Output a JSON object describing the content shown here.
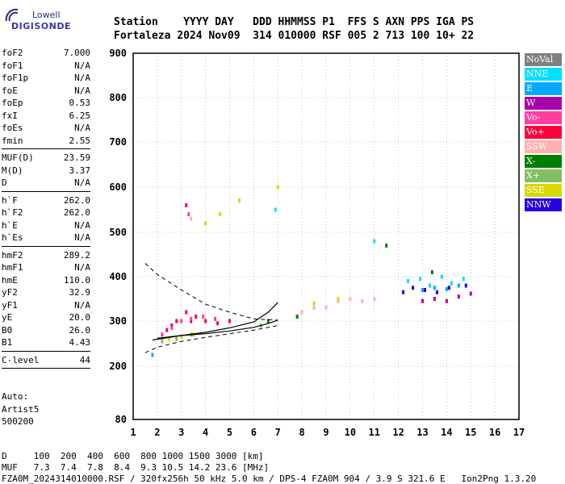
{
  "logo": {
    "line1": "Lowell",
    "line2": "DIGISONDE"
  },
  "header": {
    "line1": "Station    YYYY DAY   DDD HHMMSS P1  FFS S AXN PPS IGA PS",
    "line2": "Fortaleza 2024 Nov09  314 010000 RSF 005 2 713 100 10+ 22"
  },
  "params": [
    [
      {
        "label": "foF2",
        "value": "7.000"
      },
      {
        "label": "foF1",
        "value": "N/A"
      },
      {
        "label": "foF1p",
        "value": "N/A"
      },
      {
        "label": "foE",
        "value": "N/A"
      },
      {
        "label": "foEp",
        "value": "0.53"
      },
      {
        "label": "fxI",
        "value": "6.25"
      },
      {
        "label": "foEs",
        "value": "N/A"
      },
      {
        "label": "fmin",
        "value": "2.55"
      }
    ],
    [
      {
        "label": "MUF(D)",
        "value": "23.59"
      },
      {
        "label": "M(D)",
        "value": "3.37"
      },
      {
        "label": "D",
        "value": "N/A"
      }
    ],
    [
      {
        "label": "h`F",
        "value": "262.0"
      },
      {
        "label": "h`F2",
        "value": "262.0"
      },
      {
        "label": "h`E",
        "value": "N/A"
      },
      {
        "label": "h`Es",
        "value": "N/A"
      }
    ],
    [
      {
        "label": "hmF2",
        "value": "289.2"
      },
      {
        "label": "hmF1",
        "value": "N/A"
      },
      {
        "label": "hmE",
        "value": "110.0"
      },
      {
        "label": "yF2",
        "value": "32.9"
      },
      {
        "label": "yF1",
        "value": "N/A"
      },
      {
        "label": "yE",
        "value": "20.0"
      },
      {
        "label": "B0",
        "value": "26.0"
      },
      {
        "label": "B1",
        "value": "4.43"
      }
    ],
    [
      {
        "label": "C-level",
        "value": "44"
      }
    ]
  ],
  "auto": {
    "line1": "Auto:",
    "line2": "Artist5",
    "line3": "500200"
  },
  "legend": [
    {
      "label": "NoVal",
      "color": "#7f7f7f"
    },
    {
      "label": "NNE",
      "color": "#00e0ff"
    },
    {
      "label": "E",
      "color": "#00a8ff"
    },
    {
      "label": "W",
      "color": "#a800a8"
    },
    {
      "label": "Vo-",
      "color": "#ff3fa0"
    },
    {
      "label": "Vo+",
      "color": "#ff003f"
    },
    {
      "label": "SSW",
      "color": "#ffb0b0"
    },
    {
      "label": "X-",
      "color": "#008000"
    },
    {
      "label": "X+",
      "color": "#80c060"
    },
    {
      "label": "SSE",
      "color": "#d8d800"
    },
    {
      "label": "NNW",
      "color": "#2800e0"
    }
  ],
  "footer": {
    "line1": "D     100  200  400  600  800 1000 1500 3000 [km]",
    "line2": "MUF   7.3  7.4  7.8  8.4  9.3 10.5 14.2 23.6 [MHz]",
    "line3": "FZA0M_2024314010000.RSF / 320fx256h 50 kHz 5.0 km / DPS-4 FZA0M 904 / 3.9 S 321.6 E   Ion2Png 1.3.20"
  },
  "chart_data": {
    "type": "scatter",
    "title": "",
    "xlabel": "",
    "ylabel": "",
    "xlim": [
      1,
      17
    ],
    "ylim": [
      80,
      900
    ],
    "x_ticks": [
      1,
      2,
      3,
      4,
      5,
      6,
      7,
      8,
      9,
      10,
      11,
      12,
      13,
      14,
      15,
      16,
      17
    ],
    "y_ticks": [
      80,
      200,
      300,
      400,
      500,
      600,
      700,
      800,
      900
    ],
    "grid": "dotted",
    "legend_position": "right",
    "series": [
      {
        "name": "NNE",
        "color": "#00e0ff",
        "points": [
          [
            12.4,
            390
          ],
          [
            12.9,
            395
          ],
          [
            13.3,
            380
          ],
          [
            13.8,
            400
          ],
          [
            14.2,
            385
          ],
          [
            14.7,
            395
          ],
          [
            11.0,
            480
          ],
          [
            6.9,
            550
          ]
        ]
      },
      {
        "name": "E",
        "color": "#00a8ff",
        "points": [
          [
            13.0,
            370
          ],
          [
            13.5,
            375
          ],
          [
            14.0,
            372
          ],
          [
            14.5,
            380
          ],
          [
            1.8,
            225
          ]
        ]
      },
      {
        "name": "W",
        "color": "#a800a8",
        "points": [
          [
            13.0,
            345
          ],
          [
            13.5,
            350
          ],
          [
            14.0,
            345
          ],
          [
            14.5,
            355
          ],
          [
            15.0,
            362
          ],
          [
            2.6,
            290
          ],
          [
            3.4,
            300
          ]
        ]
      },
      {
        "name": "Vo-",
        "color": "#ff3fa0",
        "points": [
          [
            2.2,
            270
          ],
          [
            2.6,
            285
          ],
          [
            3.0,
            300
          ],
          [
            3.4,
            305
          ],
          [
            3.9,
            310
          ],
          [
            4.4,
            305
          ],
          [
            3.3,
            540
          ]
        ]
      },
      {
        "name": "Vo+",
        "color": "#ff003f",
        "points": [
          [
            2.4,
            280
          ],
          [
            2.8,
            300
          ],
          [
            3.2,
            320
          ],
          [
            3.6,
            310
          ],
          [
            4.0,
            300
          ],
          [
            4.5,
            295
          ],
          [
            5.0,
            300
          ],
          [
            3.2,
            560
          ]
        ]
      },
      {
        "name": "SSW",
        "color": "#ffb0b0",
        "points": [
          [
            8.0,
            320
          ],
          [
            8.5,
            330
          ],
          [
            9.0,
            330
          ],
          [
            9.5,
            345
          ],
          [
            10.0,
            350
          ],
          [
            10.5,
            345
          ],
          [
            11.0,
            350
          ],
          [
            3.4,
            530
          ]
        ]
      },
      {
        "name": "X-",
        "color": "#008000",
        "points": [
          [
            6.6,
            300
          ],
          [
            7.8,
            310
          ],
          [
            11.5,
            470
          ],
          [
            13.4,
            410
          ]
        ]
      },
      {
        "name": "X+",
        "color": "#80c060",
        "points": [
          [
            2.2,
            255
          ],
          [
            2.8,
            260
          ],
          [
            3.4,
            270
          ],
          [
            6.3,
            290
          ]
        ]
      },
      {
        "name": "SSE",
        "color": "#d8d800",
        "points": [
          [
            2.5,
            260
          ],
          [
            3.0,
            265
          ],
          [
            3.5,
            270
          ],
          [
            4.0,
            520
          ],
          [
            4.6,
            540
          ],
          [
            5.4,
            570
          ],
          [
            7.0,
            600
          ],
          [
            8.5,
            340
          ],
          [
            9.5,
            350
          ]
        ]
      },
      {
        "name": "NNW",
        "color": "#2800e0",
        "points": [
          [
            12.2,
            365
          ],
          [
            12.6,
            375
          ],
          [
            13.1,
            370
          ],
          [
            13.6,
            365
          ],
          [
            14.1,
            375
          ],
          [
            14.8,
            380
          ]
        ]
      }
    ],
    "profile_curve": [
      [
        1.8,
        258
      ],
      [
        3.0,
        268
      ],
      [
        4.0,
        272
      ],
      [
        5.0,
        278
      ],
      [
        6.0,
        286
      ],
      [
        6.5,
        293
      ],
      [
        7.0,
        302
      ]
    ],
    "trace_curve": [
      [
        2.0,
        262
      ],
      [
        3.0,
        268
      ],
      [
        4.0,
        275
      ],
      [
        5.0,
        285
      ],
      [
        6.0,
        298
      ],
      [
        6.6,
        320
      ],
      [
        7.0,
        342
      ]
    ],
    "dashed_curves": [
      [
        [
          1.5,
          430
        ],
        [
          2.0,
          405
        ],
        [
          3.0,
          370
        ],
        [
          4.0,
          338
        ],
        [
          5.0,
          320
        ],
        [
          6.0,
          305
        ],
        [
          7.0,
          302
        ]
      ],
      [
        [
          1.5,
          230
        ],
        [
          2.0,
          242
        ],
        [
          3.0,
          255
        ],
        [
          4.0,
          264
        ],
        [
          5.0,
          272
        ],
        [
          6.0,
          280
        ],
        [
          7.0,
          290
        ]
      ]
    ]
  }
}
